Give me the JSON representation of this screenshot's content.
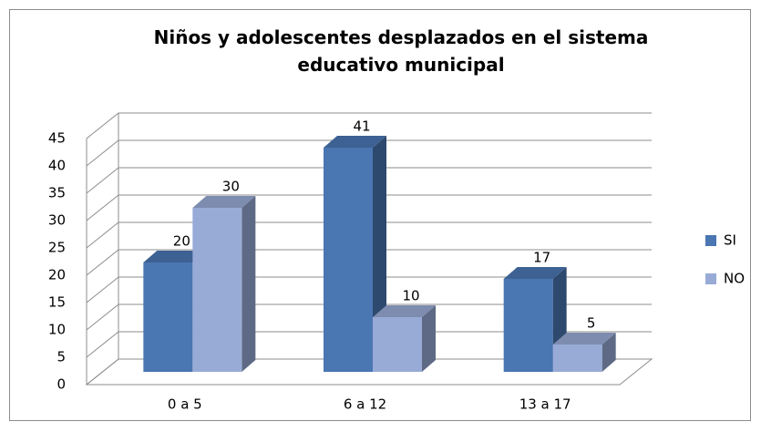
{
  "chart_data": {
    "type": "bar",
    "title": "Niños y adolescentes desplazados en el sistema educativo municipal",
    "categories": [
      "0 a 5",
      "6 a 12",
      "13 a 17"
    ],
    "series": [
      {
        "name": "SI",
        "color": "#4a76b2",
        "values": [
          20,
          41,
          17
        ]
      },
      {
        "name": "NO",
        "color": "#98abd6",
        "values": [
          30,
          10,
          5
        ]
      }
    ],
    "ylim": [
      0,
      45
    ],
    "yticks": [
      0,
      5,
      10,
      15,
      20,
      25,
      30,
      35,
      40,
      45
    ],
    "grid": true,
    "legend": "right"
  }
}
